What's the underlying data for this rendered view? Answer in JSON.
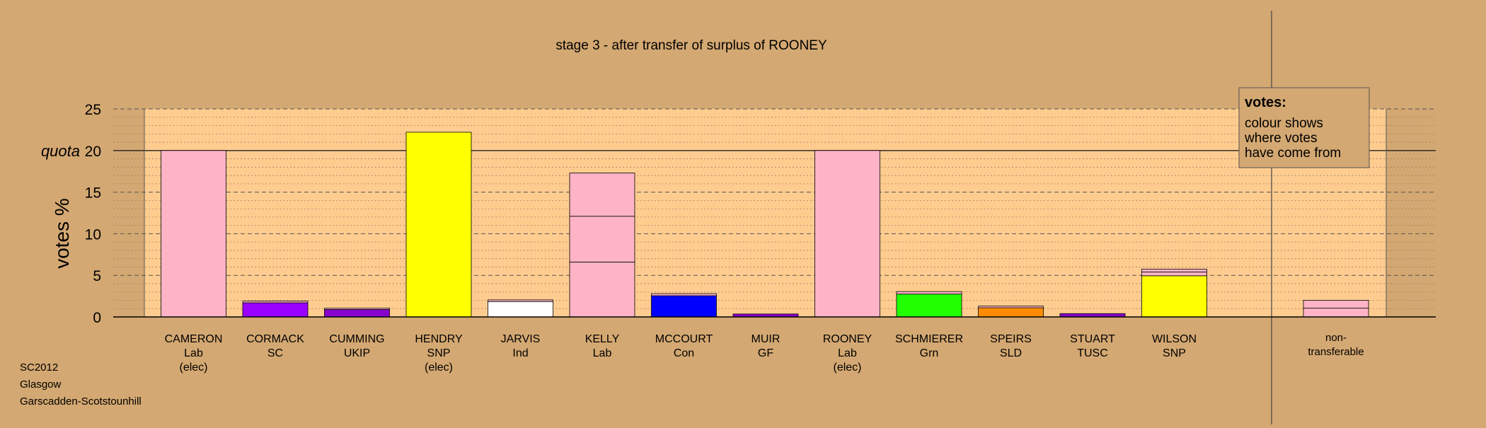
{
  "chart_data": {
    "type": "bar",
    "title": "stage 3 - after transfer of surplus of ROONEY",
    "ylabel": "votes %",
    "ylim": [
      0,
      25
    ],
    "yticks": [
      0,
      5,
      10,
      15,
      20,
      25
    ],
    "quota": 20,
    "quota_label": "quota",
    "grid": true,
    "candidates": [
      {
        "name": "CAMERON",
        "party": "Lab",
        "note": "(elec)",
        "segments": [
          {
            "value": 20.0,
            "color": "#ffb3c6"
          }
        ]
      },
      {
        "name": "CORMACK",
        "party": "SC",
        "note": "",
        "segments": [
          {
            "value": 1.7,
            "color": "#9900ff"
          },
          {
            "value": 0.2,
            "color": "#ffb3c6"
          }
        ]
      },
      {
        "name": "CUMMING",
        "party": "UKIP",
        "note": "",
        "segments": [
          {
            "value": 0.9,
            "color": "#8800cc"
          },
          {
            "value": 0.15,
            "color": "#ffb3c6"
          }
        ]
      },
      {
        "name": "HENDRY",
        "party": "SNP",
        "note": "(elec)",
        "segments": [
          {
            "value": 22.2,
            "color": "#ffff00"
          }
        ]
      },
      {
        "name": "JARVIS",
        "party": "Ind",
        "note": "",
        "segments": [
          {
            "value": 1.85,
            "color": "#ffffff"
          },
          {
            "value": 0.2,
            "color": "#ffb3c6"
          }
        ]
      },
      {
        "name": "KELLY",
        "party": "Lab",
        "note": "",
        "segments": [
          {
            "value": 6.6,
            "color": "#ffb3c6"
          },
          {
            "value": 5.5,
            "color": "#ffb3c6"
          },
          {
            "value": 5.2,
            "color": "#ffb3c6"
          }
        ]
      },
      {
        "name": "MCCOURT",
        "party": "Con",
        "note": "",
        "segments": [
          {
            "value": 2.55,
            "color": "#0000ff"
          },
          {
            "value": 0.25,
            "color": "#ffb3c6"
          }
        ]
      },
      {
        "name": "MUIR",
        "party": "GF",
        "note": "",
        "segments": [
          {
            "value": 0.35,
            "color": "#8800cc"
          }
        ]
      },
      {
        "name": "ROONEY",
        "party": "Lab",
        "note": "(elec)",
        "segments": [
          {
            "value": 20.0,
            "color": "#ffb3c6"
          }
        ]
      },
      {
        "name": "SCHMIERER",
        "party": "Grn",
        "note": "",
        "segments": [
          {
            "value": 2.75,
            "color": "#22ff00"
          },
          {
            "value": 0.3,
            "color": "#ffb3c6"
          }
        ]
      },
      {
        "name": "SPEIRS",
        "party": "SLD",
        "note": "",
        "segments": [
          {
            "value": 1.1,
            "color": "#ff8c00"
          },
          {
            "value": 0.2,
            "color": "#ffb3c6"
          }
        ]
      },
      {
        "name": "STUART",
        "party": "TUSC",
        "note": "",
        "segments": [
          {
            "value": 0.4,
            "color": "#8800cc"
          }
        ]
      },
      {
        "name": "WILSON",
        "party": "SNP",
        "note": "",
        "segments": [
          {
            "value": 4.95,
            "color": "#ffff00"
          },
          {
            "value": 0.45,
            "color": "#ffb3c6"
          },
          {
            "value": 0.35,
            "color": "#ffb3c6"
          }
        ]
      }
    ],
    "nontransferable": {
      "label_lines": [
        "non-",
        "transferable"
      ],
      "segments": [
        {
          "value": 1.05,
          "color": "#ffb3c6"
        },
        {
          "value": 0.95,
          "color": "#ffb3c6"
        }
      ]
    },
    "legend": {
      "title": "votes:",
      "lines": [
        "colour shows",
        "where votes",
        "have come from"
      ]
    }
  },
  "footer": {
    "lines": [
      "SC2012",
      "Glasgow",
      "Garscadden-Scotstounhill"
    ]
  }
}
